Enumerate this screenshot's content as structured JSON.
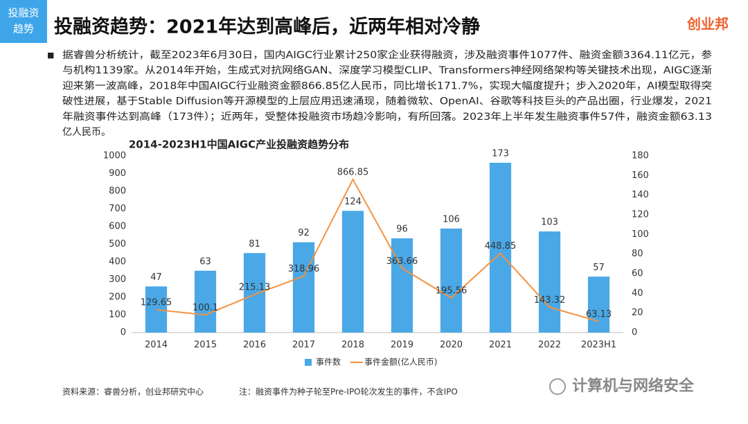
{
  "header": {
    "tag": [
      "投融资",
      "趋势"
    ],
    "title": "投融资趋势：2021年达到高峰后，近两年相对冷静",
    "logo": "创业邦"
  },
  "paragraph": {
    "bullet": "■",
    "lines": [
      "据睿兽分析统计，截至2023年6月30日，国内AIGC行业累计250家企业获得融资，涉及融资事件1077件、融资金额3364.11亿元，参",
      "与机构1139家。从2014年开始，生成式对抗网络GAN、深度学习模型CLIP、Transformers神经网络架构等关键技术出现，AIGC逐渐",
      "迎来第一波高峰，2018年中国AIGC行业融资金额866.85亿人民币，同比增长171.7%，实现大幅度提升；步入2020年，AI模型取得突",
      "破性进展，基于Stable Diffusion等开源模型的上层应用迅速涌现，随着微软、OpenAI、谷歌等科技巨头的产品出圈，行业爆发，2021",
      "年融资事件达到高峰（173件）；近两年，受整体投融资市场趋冷影响，有所回落。2023年上半年发生融资事件57件，融资金额63.13",
      "亿人民币。"
    ]
  },
  "chart_data": {
    "type": "bar",
    "title": "2014-2023H1中国AIGC产业投融资趋势分布",
    "categories": [
      "2014",
      "2015",
      "2016",
      "2017",
      "2018",
      "2019",
      "2020",
      "2021",
      "2022",
      "2023H1"
    ],
    "series": [
      {
        "name": "事件数",
        "type": "bar",
        "axis": "y2",
        "color": "#4aa8e6",
        "values": [
          47,
          63,
          81,
          92,
          124,
          96,
          106,
          173,
          103,
          57
        ]
      },
      {
        "name": "事件金额(亿人民币)",
        "type": "line",
        "axis": "y",
        "color": "#f5923e",
        "values": [
          129.65,
          100.1,
          215.13,
          318.96,
          866.85,
          363.66,
          195.56,
          448.85,
          143.32,
          63.13
        ]
      }
    ],
    "ylim": [
      0,
      1000
    ],
    "yticks": [
      0,
      100,
      200,
      300,
      400,
      500,
      600,
      700,
      800,
      900,
      1000
    ],
    "y2lim": [
      0,
      180
    ],
    "y2ticks": [
      0,
      20,
      40,
      60,
      80,
      100,
      120,
      140,
      160,
      180
    ],
    "legend": "bottom"
  },
  "footer": {
    "source": "资料来源：睿兽分析，创业邦研究中心",
    "note": "注：融资事件为种子轮至Pre-IPO轮次发生的事件，不含IPO",
    "watermark": "计算机与网络安全"
  }
}
